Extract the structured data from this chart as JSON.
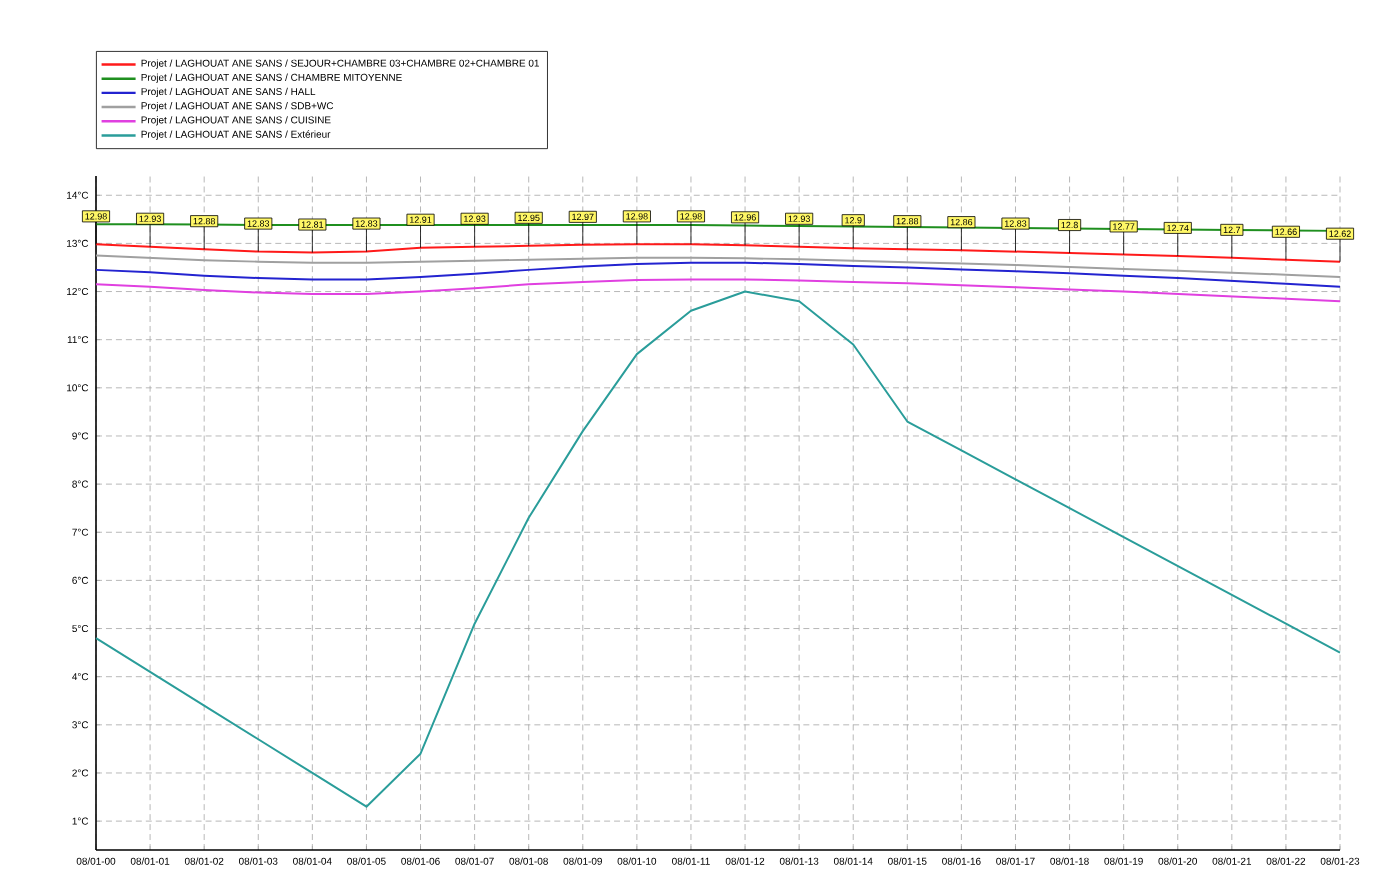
{
  "chart_data": {
    "type": "line",
    "categories": [
      "08/01-00",
      "08/01-01",
      "08/01-02",
      "08/01-03",
      "08/01-04",
      "08/01-05",
      "08/01-06",
      "08/01-07",
      "08/01-08",
      "08/01-09",
      "08/01-10",
      "08/01-11",
      "08/01-12",
      "08/01-13",
      "08/01-14",
      "08/01-15",
      "08/01-16",
      "08/01-17",
      "08/01-18",
      "08/01-19",
      "08/01-20",
      "08/01-21",
      "08/01-22",
      "08/01-23"
    ],
    "series": [
      {
        "name": "Projet / LAGHOUAT ANE SANS / SEJOUR+CHAMBRE 03+CHAMBRE 02+CHAMBRE 01",
        "color": "#ff1a1a",
        "values": [
          12.98,
          12.93,
          12.88,
          12.83,
          12.81,
          12.83,
          12.91,
          12.93,
          12.95,
          12.97,
          12.98,
          12.98,
          12.96,
          12.93,
          12.9,
          12.88,
          12.86,
          12.83,
          12.8,
          12.77,
          12.74,
          12.7,
          12.66,
          12.62
        ],
        "value_labels": [
          "12.98",
          "12.93",
          "12.88",
          "12.83",
          "12.81",
          "12.83",
          "12.91",
          "12.93",
          "12.95",
          "12.97",
          "12.98",
          "12.98",
          "12.96",
          "12.93",
          "12.9",
          "12.88",
          "12.86",
          "12.83",
          "12.8",
          "12.77",
          "12.74",
          "12.7",
          "12.66",
          "12.62"
        ]
      },
      {
        "name": "Projet / LAGHOUAT ANE SANS / CHAMBRE MITOYENNE",
        "color": "#1f8f1f",
        "values": [
          13.4,
          13.4,
          13.39,
          13.38,
          13.38,
          13.38,
          13.38,
          13.38,
          13.38,
          13.38,
          13.38,
          13.38,
          13.37,
          13.36,
          13.35,
          13.34,
          13.33,
          13.32,
          13.31,
          13.3,
          13.29,
          13.28,
          13.27,
          13.26
        ]
      },
      {
        "name": "Projet / LAGHOUAT ANE SANS / HALL",
        "color": "#2323d0",
        "values": [
          12.45,
          12.4,
          12.33,
          12.28,
          12.25,
          12.25,
          12.3,
          12.37,
          12.45,
          12.52,
          12.57,
          12.6,
          12.6,
          12.57,
          12.53,
          12.5,
          12.46,
          12.42,
          12.38,
          12.33,
          12.28,
          12.22,
          12.16,
          12.1
        ]
      },
      {
        "name": "Projet / LAGHOUAT ANE SANS / SDB+WC",
        "color": "#a0a0a0",
        "values": [
          12.75,
          12.7,
          12.65,
          12.62,
          12.6,
          12.6,
          12.62,
          12.64,
          12.66,
          12.68,
          12.7,
          12.7,
          12.69,
          12.67,
          12.64,
          12.61,
          12.58,
          12.55,
          12.51,
          12.47,
          12.43,
          12.39,
          12.35,
          12.3
        ]
      },
      {
        "name": "Projet / LAGHOUAT ANE SANS / CUISINE",
        "color": "#e040e0",
        "values": [
          12.15,
          12.1,
          12.03,
          11.98,
          11.95,
          11.95,
          12.0,
          12.07,
          12.15,
          12.2,
          12.24,
          12.25,
          12.25,
          12.23,
          12.2,
          12.17,
          12.13,
          12.09,
          12.04,
          12.0,
          11.95,
          11.9,
          11.85,
          11.8
        ]
      },
      {
        "name": "Projet / LAGHOUAT ANE SANS / Extérieur",
        "color": "#2a9d9a",
        "values": [
          4.8,
          4.1,
          3.4,
          2.7,
          2.0,
          1.3,
          2.4,
          5.1,
          7.3,
          9.1,
          10.7,
          11.6,
          12.0,
          11.8,
          10.9,
          9.3,
          8.7,
          8.1,
          7.5,
          6.9,
          6.3,
          5.7,
          5.1,
          4.5
        ]
      }
    ],
    "ylim": [
      0.4,
      14.4
    ],
    "yticks": [
      {
        "value": 1,
        "label": "1°C"
      },
      {
        "value": 2,
        "label": "2°C"
      },
      {
        "value": 3,
        "label": "3°C"
      },
      {
        "value": 4,
        "label": "4°C"
      },
      {
        "value": 5,
        "label": "5°C"
      },
      {
        "value": 6,
        "label": "6°C"
      },
      {
        "value": 7,
        "label": "7°C"
      },
      {
        "value": 8,
        "label": "8°C"
      },
      {
        "value": 9,
        "label": "9°C"
      },
      {
        "value": 10,
        "label": "10°C"
      },
      {
        "value": 11,
        "label": "11°C"
      },
      {
        "value": 12,
        "label": "12°C"
      },
      {
        "value": 13,
        "label": "13°C"
      },
      {
        "value": 14,
        "label": "14°C"
      }
    ],
    "grid": true,
    "legend": "top left",
    "marker": "none",
    "line_style": "solid"
  }
}
